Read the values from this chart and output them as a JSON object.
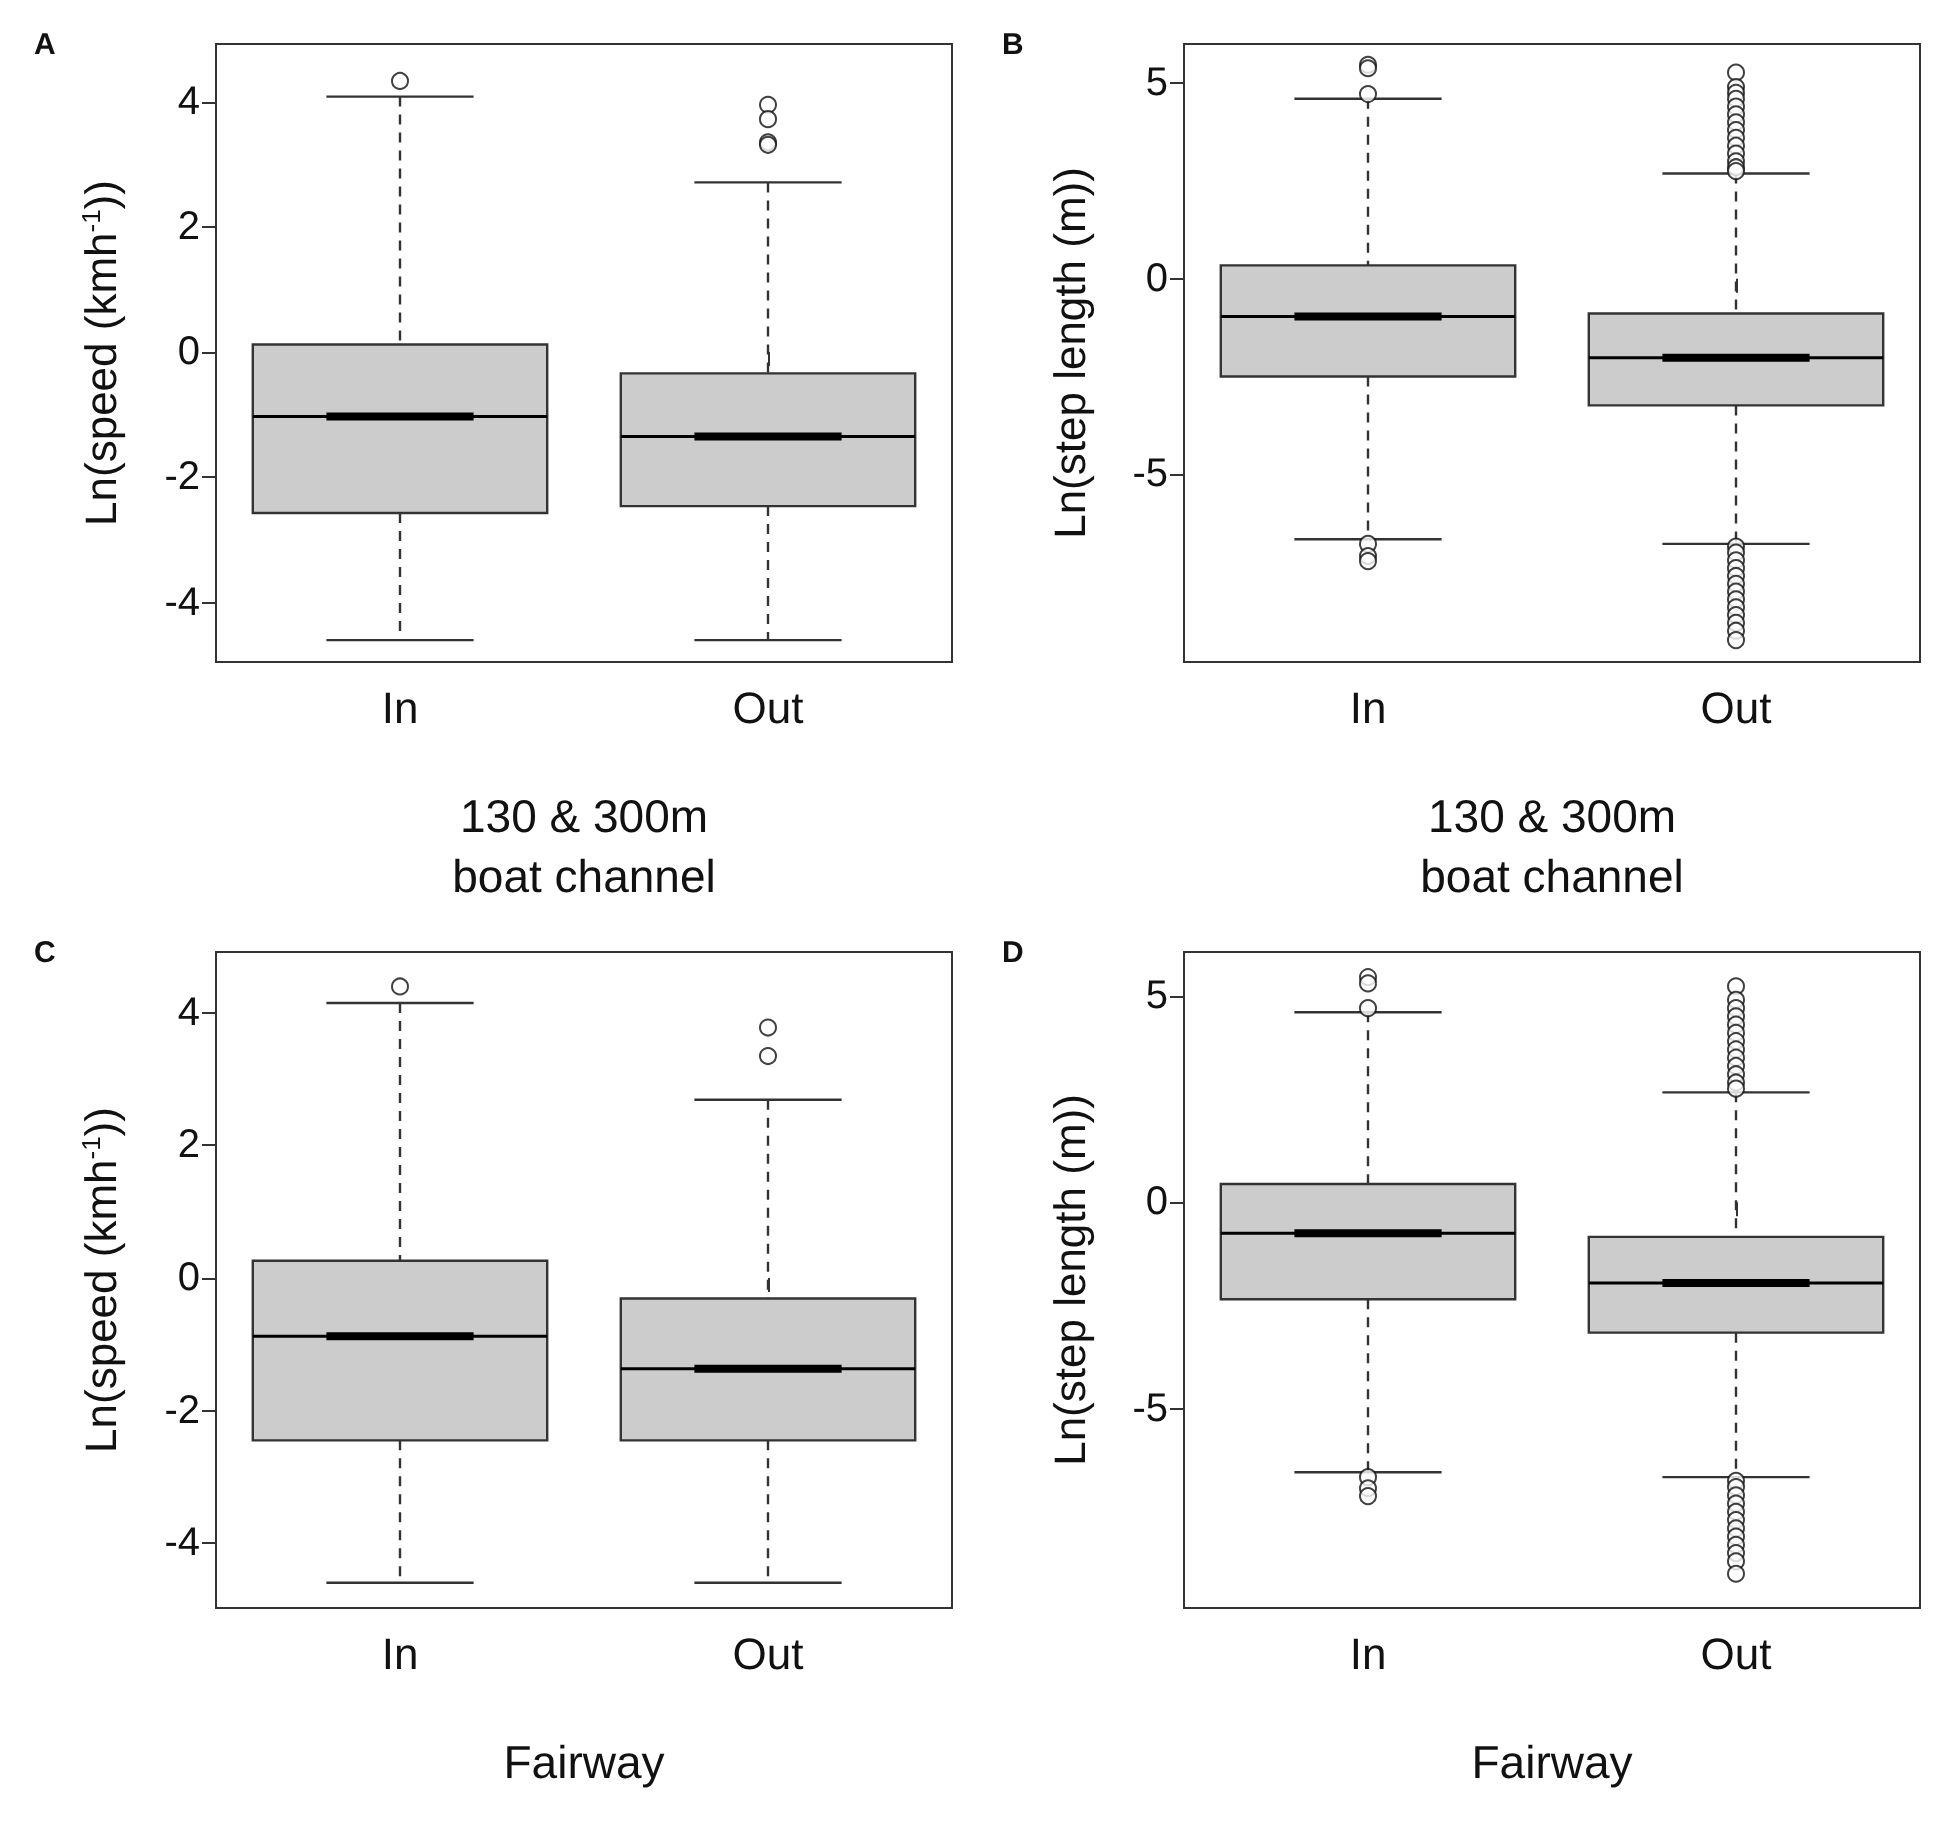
{
  "chart_data": [
    {
      "type": "box",
      "title": "A",
      "xlabel": "130 & 300m\nboat channel",
      "ylabel": "Ln(speed (kmh$^{-1}$))",
      "categories": [
        "In",
        "Out"
      ],
      "ylim": [
        -4.95,
        4.92
      ],
      "yticks": [
        -4,
        -2,
        0,
        2,
        4
      ],
      "boxes": [
        {
          "low": -4.6,
          "q1": -2.57,
          "median": -1.03,
          "q3": 0.12,
          "high": 4.08,
          "outliers": [
            4.33
          ]
        },
        {
          "low": -4.6,
          "q1": -2.46,
          "median": -1.35,
          "q3": -0.34,
          "high": 2.71,
          "outliers": [
            3.95,
            3.72,
            3.35,
            3.31
          ]
        }
      ]
    },
    {
      "type": "box",
      "title": "B",
      "xlabel": "130 & 300m\nboat channel",
      "ylabel": "Ln(step length (m))",
      "categories": [
        "In",
        "Out"
      ],
      "ylim": [
        -9.8,
        6.0
      ],
      "yticks": [
        -5,
        0,
        5
      ],
      "boxes": [
        {
          "low": -6.66,
          "q1": -2.5,
          "median": -0.97,
          "q3": 0.34,
          "high": 4.6,
          "outliers": [
            5.47,
            5.38,
            4.72,
            -6.78,
            -7.09,
            -7.22
          ]
        },
        {
          "low": -6.78,
          "q1": -3.24,
          "median": -2.02,
          "q3": -0.89,
          "high": 2.69,
          "outliers": [
            5.27,
            4.9,
            4.75,
            4.6,
            4.4,
            4.2,
            4.0,
            3.8,
            3.6,
            3.4,
            3.2,
            3.0,
            2.85,
            2.75,
            -6.85,
            -7.0,
            -7.2,
            -7.4,
            -7.6,
            -7.8,
            -8.0,
            -8.2,
            -8.4,
            -8.6,
            -8.8,
            -9.0,
            -9.24
          ]
        }
      ]
    },
    {
      "type": "box",
      "title": "C",
      "xlabel": "Fairway",
      "ylabel": "Ln(speed (kmh$^{-1}$))",
      "categories": [
        "In",
        "Out"
      ],
      "ylim": [
        -4.98,
        4.92
      ],
      "yticks": [
        -4,
        -2,
        0,
        2,
        4
      ],
      "boxes": [
        {
          "low": -4.6,
          "q1": -2.45,
          "median": -0.88,
          "q3": 0.26,
          "high": 4.15,
          "outliers": [
            4.4
          ]
        },
        {
          "low": -4.6,
          "q1": -2.45,
          "median": -1.37,
          "q3": -0.31,
          "high": 2.69,
          "outliers": [
            3.78,
            3.35
          ]
        }
      ]
    },
    {
      "type": "box",
      "title": "D",
      "xlabel": "Fairway",
      "ylabel": "Ln(step length (m))",
      "categories": [
        "In",
        "Out"
      ],
      "ylim": [
        -9.83,
        6.06
      ],
      "yticks": [
        -5,
        0,
        5
      ],
      "boxes": [
        {
          "low": -6.54,
          "q1": -2.35,
          "median": -0.75,
          "q3": 0.44,
          "high": 4.6,
          "outliers": [
            5.45,
            5.3,
            4.7,
            -6.66,
            -6.93,
            -7.12
          ]
        },
        {
          "low": -6.66,
          "q1": -3.16,
          "median": -1.96,
          "q3": -0.84,
          "high": 2.66,
          "outliers": [
            5.23,
            4.9,
            4.7,
            4.5,
            4.3,
            4.1,
            3.9,
            3.7,
            3.5,
            3.3,
            3.1,
            2.9,
            2.75,
            -6.75,
            -6.9,
            -7.1,
            -7.3,
            -7.5,
            -7.7,
            -7.9,
            -8.1,
            -8.3,
            -8.5,
            -8.7,
            -9.0
          ]
        }
      ]
    }
  ]
}
